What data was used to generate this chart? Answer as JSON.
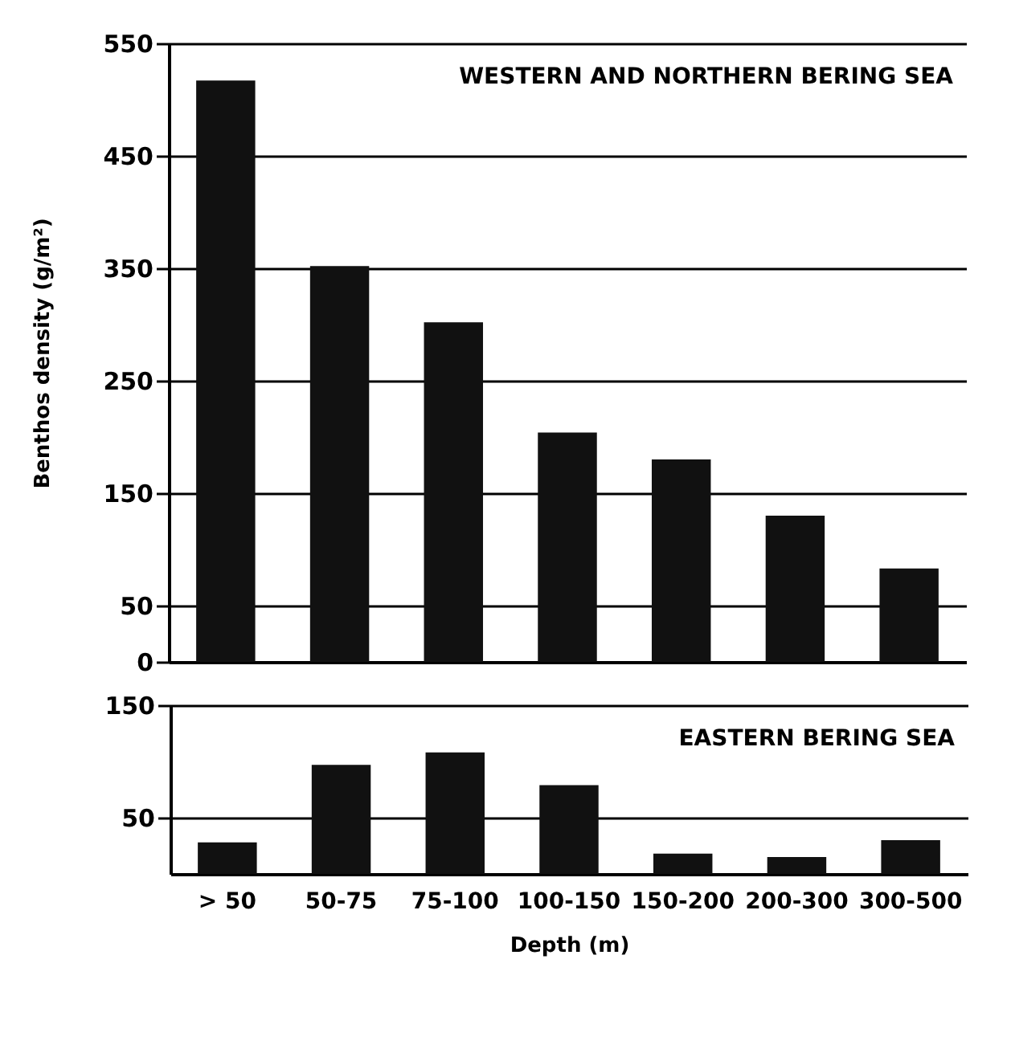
{
  "chart_data": [
    {
      "type": "bar",
      "title": "WESTERN AND NORTHERN BERING SEA",
      "ylabel": "Benthos density (g/m²)",
      "categories": [
        "> 50",
        "50-75",
        "75-100",
        "100-150",
        "150-200",
        "200-300",
        "300-500"
      ],
      "values": [
        517,
        352,
        302,
        204,
        180,
        130,
        83
      ],
      "color": "#111111",
      "ylim": [
        0,
        550
      ],
      "yticks": [
        0,
        50,
        150,
        250,
        350,
        450,
        550
      ],
      "grid": "y",
      "tick_labels": "y"
    },
    {
      "type": "bar",
      "title": "EASTERN BERING SEA",
      "xlabel": "Depth (m)",
      "categories": [
        "> 50",
        "50-75",
        "75-100",
        "100-150",
        "150-200",
        "200-300",
        "300-500"
      ],
      "values": [
        28,
        97,
        108,
        79,
        18,
        15,
        30
      ],
      "color": "#111111",
      "ylim": [
        0,
        150
      ],
      "yticks": [
        50,
        150
      ],
      "grid": "y"
    }
  ]
}
